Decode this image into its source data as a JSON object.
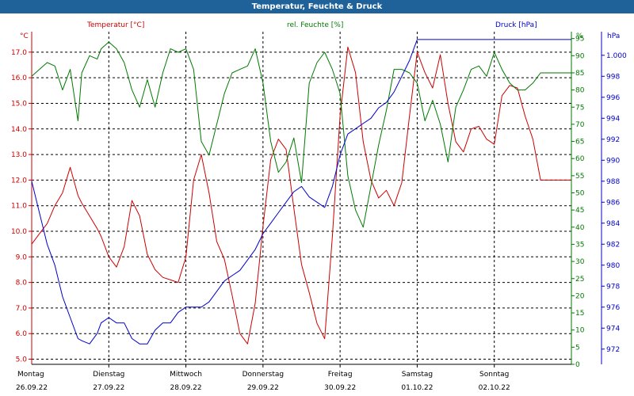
{
  "window": {
    "title": "Temperatur, Feuchte & Druck"
  },
  "chart_data": {
    "type": "line",
    "title": "Temperatur, Feuchte & Druck",
    "x_day_labels": [
      {
        "day": "Montag",
        "date": "26.09.22"
      },
      {
        "day": "Dienstag",
        "date": "27.09.22"
      },
      {
        "day": "Mittwoch",
        "date": "28.09.22"
      },
      {
        "day": "Donnerstag",
        "date": "29.09.22"
      },
      {
        "day": "Freitag",
        "date": "30.09.22"
      },
      {
        "day": "Samstag",
        "date": "01.10.22"
      },
      {
        "day": "Sonntag",
        "date": "02.10.22"
      }
    ],
    "x_range_days": [
      0,
      7
    ],
    "axes": {
      "temperature": {
        "unit_label": "°C",
        "legend": "Temperatur [°C]",
        "color": "#cc0000",
        "ylim": [
          4.8,
          17.8
        ],
        "ticks": [
          "5.0",
          "6.0",
          "7.0",
          "8.0",
          "9.0",
          "10.0",
          "11.0",
          "12.0",
          "13.0",
          "14.0",
          "15.0",
          "16.0",
          "17.0"
        ]
      },
      "humidity": {
        "unit_label": "%",
        "legend": "rel. Feuchte [%]",
        "color": "#007a00",
        "ylim": [
          0,
          97
        ],
        "ticks": [
          "0",
          "5",
          "10",
          "15",
          "20",
          "25",
          "30",
          "35",
          "40",
          "45",
          "50",
          "55",
          "60",
          "65",
          "70",
          "75",
          "80",
          "85",
          "90",
          "95"
        ]
      },
      "pressure": {
        "unit_label": "hPa",
        "legend": "Druck [hPa]",
        "color": "#0000cc",
        "ylim": [
          970.55,
          1002.25
        ],
        "ticks": [
          "972",
          "974",
          "976",
          "978",
          "980",
          "982",
          "984",
          "986",
          "988",
          "990",
          "992",
          "994",
          "996",
          "998",
          "1.000"
        ]
      }
    },
    "grid": true,
    "series": [
      {
        "name": "Temperatur [°C]",
        "axis": "temperature",
        "color": "#cc0000",
        "x": [
          0,
          0.1,
          0.2,
          0.3,
          0.4,
          0.5,
          0.6,
          0.65,
          0.75,
          0.85,
          0.9,
          1,
          1.1,
          1.2,
          1.3,
          1.4,
          1.5,
          1.6,
          1.7,
          1.8,
          1.9,
          2,
          2.1,
          2.2,
          2.3,
          2.4,
          2.5,
          2.6,
          2.7,
          2.8,
          2.9,
          3,
          3.1,
          3.2,
          3.3,
          3.4,
          3.5,
          3.6,
          3.7,
          3.8,
          3.9,
          4,
          4.1,
          4.2,
          4.3,
          4.4,
          4.5,
          4.6,
          4.7,
          4.8,
          4.9,
          5,
          5.1,
          5.2,
          5.3,
          5.4,
          5.5,
          5.6,
          5.7,
          5.8,
          5.9,
          6,
          6.1,
          6.2,
          6.3,
          6.4,
          6.5,
          6.6,
          6.7,
          6.8,
          6.9,
          7
        ],
        "y": [
          9.5,
          9.9,
          10.3,
          11.0,
          11.5,
          12.5,
          11.4,
          11.1,
          10.6,
          10.1,
          9.8,
          9.0,
          8.6,
          9.4,
          11.2,
          10.6,
          9.1,
          8.5,
          8.2,
          8.1,
          8.0,
          9.0,
          12.0,
          13.0,
          11.5,
          9.6,
          8.9,
          7.5,
          6.0,
          5.6,
          7.2,
          10.2,
          12.8,
          13.6,
          13.2,
          10.9,
          8.7,
          7.6,
          6.4,
          5.8,
          9.8,
          14.5,
          17.2,
          16.2,
          13.5,
          12.0,
          11.3,
          11.6,
          11.0,
          11.9,
          14.5,
          17.0,
          16.2,
          15.6,
          16.9,
          15.0,
          13.5,
          13.1,
          14.0,
          14.1,
          13.6,
          13.4,
          15.3,
          15.7,
          15.6,
          14.5,
          13.6,
          12.0,
          12.0,
          12.0,
          12.0,
          12.0
        ]
      },
      {
        "name": "rel. Feuchte [%]",
        "axis": "humidity",
        "color": "#007a00",
        "x": [
          0,
          0.1,
          0.2,
          0.3,
          0.4,
          0.5,
          0.6,
          0.65,
          0.75,
          0.85,
          0.9,
          1,
          1.1,
          1.2,
          1.3,
          1.4,
          1.5,
          1.6,
          1.7,
          1.8,
          1.9,
          2,
          2.1,
          2.2,
          2.3,
          2.4,
          2.5,
          2.6,
          2.7,
          2.8,
          2.9,
          3,
          3.1,
          3.2,
          3.3,
          3.4,
          3.5,
          3.6,
          3.7,
          3.8,
          3.9,
          4,
          4.1,
          4.2,
          4.3,
          4.4,
          4.5,
          4.6,
          4.7,
          4.8,
          4.9,
          5,
          5.1,
          5.2,
          5.3,
          5.4,
          5.5,
          5.6,
          5.7,
          5.8,
          5.9,
          6,
          6.1,
          6.2,
          6.3,
          6.4,
          6.5,
          6.6,
          6.7,
          6.8,
          6.9,
          7
        ],
        "y": [
          84,
          86,
          88,
          87,
          80,
          86,
          71,
          85,
          90,
          89,
          92,
          94,
          92,
          88,
          80,
          75,
          83,
          75,
          85,
          92,
          91,
          92,
          86,
          65,
          61,
          70,
          79,
          85,
          86,
          87,
          92,
          82,
          65,
          56,
          59,
          66,
          53,
          82,
          88,
          91,
          86,
          79,
          55,
          45,
          40,
          52,
          64,
          74,
          86,
          86,
          85,
          82,
          71,
          77,
          70,
          59,
          75,
          80,
          86,
          87,
          84,
          91,
          86,
          82,
          80,
          80,
          82,
          85,
          85,
          85,
          85,
          85
        ]
      },
      {
        "name": "Druck [hPa]",
        "axis": "pressure",
        "color": "#0000cc",
        "x": [
          0,
          0.1,
          0.2,
          0.3,
          0.4,
          0.5,
          0.6,
          0.65,
          0.75,
          0.85,
          0.9,
          1,
          1.1,
          1.2,
          1.3,
          1.4,
          1.5,
          1.6,
          1.7,
          1.8,
          1.9,
          2,
          2.1,
          2.2,
          2.3,
          2.4,
          2.5,
          2.6,
          2.7,
          2.8,
          2.9,
          3,
          3.1,
          3.2,
          3.3,
          3.4,
          3.5,
          3.6,
          3.7,
          3.8,
          3.9,
          4,
          4.1,
          4.2,
          4.3,
          4.4,
          4.5,
          4.6,
          4.7,
          4.8,
          4.9,
          5,
          5.1,
          5.2,
          5.3,
          5.4,
          5.5,
          5.6,
          5.7,
          5.8,
          5.9,
          6,
          6.1,
          6.2,
          6.3,
          6.4,
          6.5,
          6.6,
          6.7,
          6.8,
          6.9,
          7
        ],
        "y": [
          988,
          985,
          982,
          980,
          977,
          975,
          973,
          972.8,
          972.5,
          973.5,
          974.5,
          975,
          974.5,
          974.5,
          973,
          972.5,
          972.5,
          973.8,
          974.5,
          974.5,
          975.5,
          976,
          976,
          976,
          976.5,
          977.5,
          978.5,
          979,
          979.5,
          980.5,
          981.5,
          983,
          984,
          985,
          986,
          987,
          987.5,
          986.5,
          986,
          985.5,
          987.5,
          990.5,
          992.5,
          993,
          993.5,
          994,
          995,
          995.5,
          996.5,
          998,
          999.5,
          1001.5,
          1001.5,
          1001.5,
          1001.5,
          1001.5,
          1001.5,
          1001.5,
          1001.5,
          1001.5,
          1001.5,
          1001.5,
          1001.5,
          1001.5,
          1001.5,
          1001.5,
          1001.5,
          1001.5,
          1001.5,
          1001.5,
          1001.5,
          1001.5
        ]
      }
    ]
  }
}
